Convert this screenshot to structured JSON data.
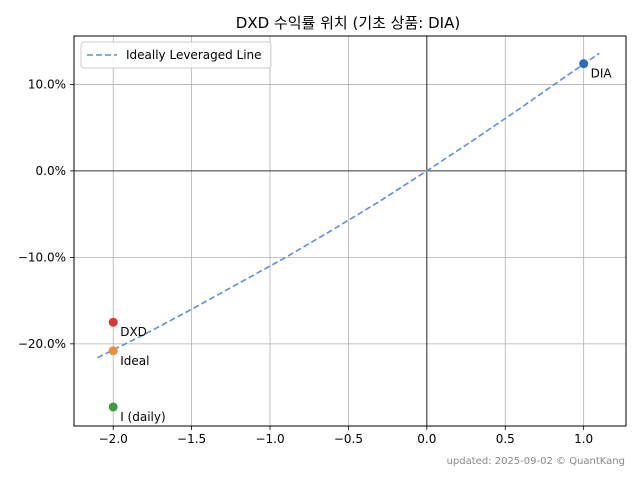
{
  "chart_data": {
    "type": "scatter",
    "title": "DXD 수익률 위치 (기초 상품: DIA)",
    "xlabel": "",
    "ylabel": "",
    "xlim": [
      -2.25,
      1.27
    ],
    "ylim": [
      -29.5,
      15.6
    ],
    "x_ticks": [
      -2.0,
      -1.5,
      -1.0,
      -0.5,
      0.0,
      0.5,
      1.0
    ],
    "x_tick_labels": [
      "−2.0",
      "−1.5",
      "−1.0",
      "−0.5",
      "0.0",
      "0.5",
      "1.0"
    ],
    "y_ticks": [
      10,
      0,
      -10,
      -20
    ],
    "y_tick_labels": [
      "10.0%",
      "0.0%",
      "−10.0%",
      "−20.0%"
    ],
    "grid": true,
    "legend_position": "top-left",
    "series": [
      {
        "name": "Ideally Leveraged Line",
        "kind": "line",
        "style": "dashed",
        "color": "#5b8fe0",
        "x": [
          -2.1,
          -1.8,
          -1.5,
          -1.2,
          -0.9,
          -0.6,
          -0.3,
          0.0,
          0.3,
          0.6,
          0.9,
          1.1
        ],
        "y": [
          -21.6,
          -18.9,
          -16.0,
          -13.0,
          -10.0,
          -6.8,
          -3.5,
          0.0,
          3.6,
          7.3,
          11.1,
          13.6
        ]
      }
    ],
    "points": [
      {
        "label": "DIA",
        "x": 1.0,
        "y": 12.4,
        "color": "#2a6db5"
      },
      {
        "label": "DXD",
        "x": -2.0,
        "y": -17.5,
        "color": "#d43a34"
      },
      {
        "label": "Ideal",
        "x": -2.0,
        "y": -20.8,
        "color": "#ec8f3f"
      },
      {
        "label": "I (daily)",
        "x": -2.0,
        "y": -27.3,
        "color": "#3d9c3d"
      }
    ],
    "footer": "updated: 2025-09-02 © QuantKang"
  }
}
